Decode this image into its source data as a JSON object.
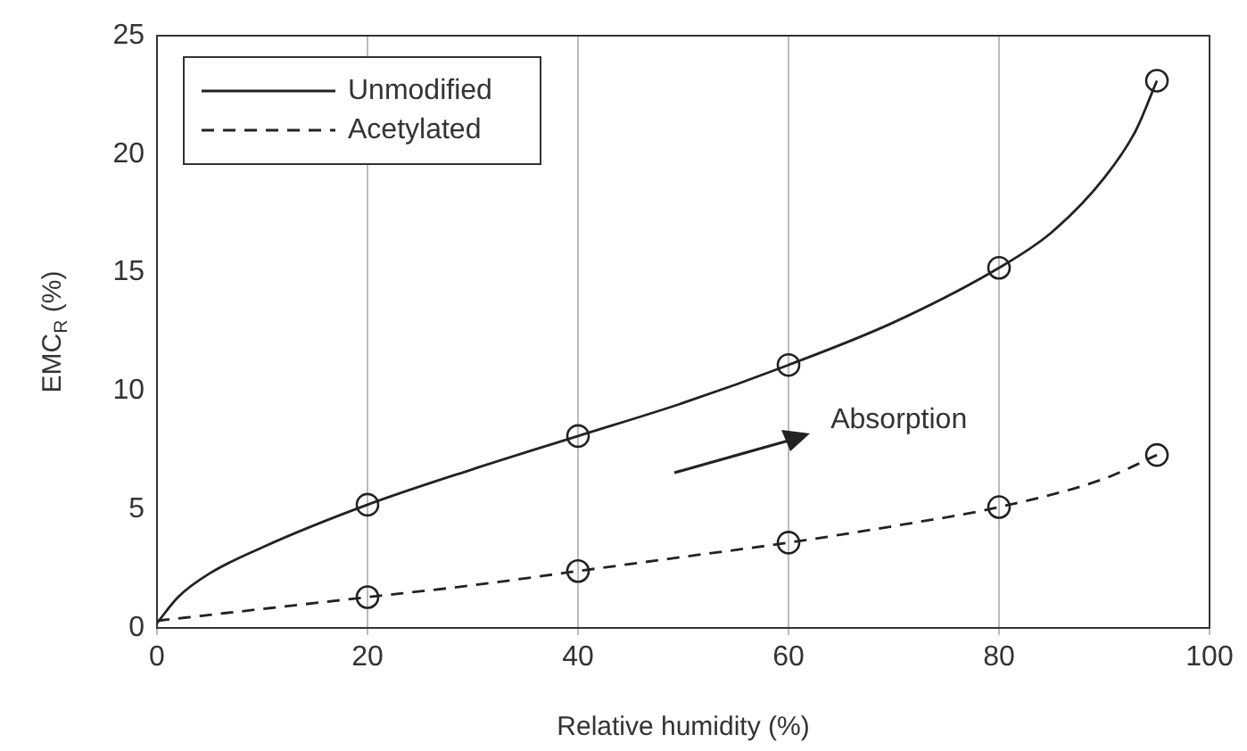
{
  "chart_data": {
    "type": "line",
    "xlabel": "Relative humidity (%)",
    "ylabel": "EMC$_{R}$ (%)",
    "xlim": [
      0,
      100
    ],
    "xticks": [
      0,
      20,
      40,
      60,
      80,
      100
    ],
    "ylim": [
      0,
      25
    ],
    "yticks": [
      0,
      5,
      10,
      15,
      20,
      25
    ],
    "grid": "x",
    "legend": "top left",
    "annotations": [
      "Absorption"
    ],
    "series": [
      {
        "name": "Unmodified",
        "type": "line",
        "color": "#222222",
        "line_style": "solid",
        "marker": "none",
        "x": [
          0,
          2,
          5,
          10,
          20,
          30,
          40,
          50,
          60,
          70,
          80,
          85,
          90,
          93,
          95
        ],
        "values": [
          0.2,
          1.3,
          2.3,
          3.4,
          5.2,
          6.7,
          8.1,
          9.5,
          11.1,
          12.9,
          15.2,
          16.7,
          19,
          21,
          23.1
        ]
      },
      {
        "name": "Acetylated",
        "type": "line",
        "color": "#222222",
        "line_style": "dashed",
        "marker": "none",
        "x": [
          0,
          10,
          20,
          30,
          40,
          50,
          60,
          70,
          80,
          90,
          95
        ],
        "values": [
          0.3,
          0.8,
          1.3,
          1.8,
          2.4,
          3,
          3.6,
          4.3,
          5.1,
          6.3,
          7.3
        ]
      },
      {
        "type": "scatter",
        "color": "#222222",
        "marker": "circle",
        "x": [
          20,
          40,
          60,
          80,
          95
        ],
        "values": [
          5.2,
          8.1,
          11.1,
          15.2,
          23.1
        ]
      },
      {
        "type": "scatter",
        "color": "#222222",
        "marker": "circle",
        "x": [
          20,
          40,
          60,
          80,
          95
        ],
        "values": [
          1.3,
          2.4,
          3.6,
          5.1,
          7.3
        ]
      }
    ]
  }
}
